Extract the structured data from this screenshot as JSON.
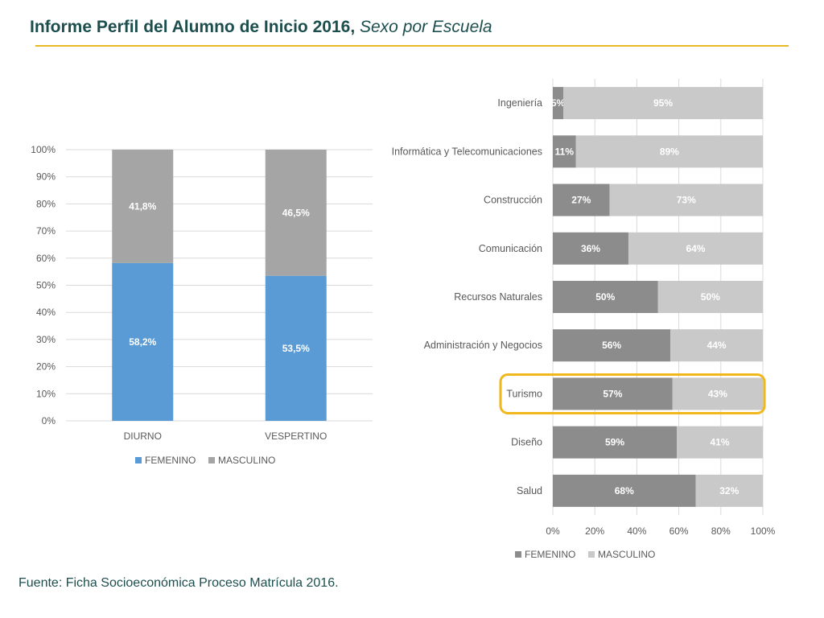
{
  "title": {
    "main": "Informe Perfil del Alumno de Inicio 2016,",
    "italic": "Sexo por Escuela"
  },
  "source": "Fuente: Ficha Socioeconómica Proceso Matrícula 2016.",
  "colors": {
    "title": "#1d4e4e",
    "rule": "#e8b923",
    "left_femenino": "#5b9bd5",
    "left_masculino": "#a5a5a5",
    "right_femenino": "#8c8c8c",
    "right_masculino": "#c9c9c9",
    "highlight": "#f0b81c",
    "grid": "#d9d9d9",
    "axis_text": "#595959"
  },
  "chart_data": [
    {
      "type": "bar",
      "orientation": "vertical",
      "stacked": true,
      "categories": [
        "DIURNO",
        "VESPERTINO"
      ],
      "series": [
        {
          "name": "FEMENINO",
          "values": [
            58.2,
            53.5
          ],
          "labels": [
            "58,2%",
            "53,5%"
          ]
        },
        {
          "name": "MASCULINO",
          "values": [
            41.8,
            46.5
          ],
          "labels": [
            "41,8%",
            "46,5%"
          ]
        }
      ],
      "ylim": [
        0,
        100
      ],
      "yticks": [
        "0%",
        "10%",
        "20%",
        "30%",
        "40%",
        "50%",
        "60%",
        "70%",
        "80%",
        "90%",
        "100%"
      ],
      "legend": [
        "FEMENINO",
        "MASCULINO"
      ],
      "legend_position": "bottom",
      "grid": true
    },
    {
      "type": "bar",
      "orientation": "horizontal",
      "stacked": true,
      "categories": [
        "Ingeniería",
        "Informática y Telecomunicaciones",
        "Construcción",
        "Comunicación",
        "Recursos Naturales",
        "Administración y Negocios",
        "Turismo",
        "Diseño",
        "Salud"
      ],
      "series": [
        {
          "name": "FEMENINO",
          "values": [
            5,
            11,
            27,
            36,
            50,
            56,
            57,
            59,
            68
          ],
          "labels": [
            "5%",
            "11%",
            "27%",
            "36%",
            "50%",
            "56%",
            "57%",
            "59%",
            "68%"
          ]
        },
        {
          "name": "MASCULINO",
          "values": [
            95,
            89,
            73,
            64,
            50,
            44,
            43,
            41,
            32
          ],
          "labels": [
            "95%",
            "89%",
            "73%",
            "64%",
            "50%",
            "44%",
            "43%",
            "41%",
            "32%"
          ]
        }
      ],
      "xlim": [
        0,
        100
      ],
      "xticks": [
        "0%",
        "20%",
        "40%",
        "60%",
        "80%",
        "100%"
      ],
      "legend": [
        "FEMENINO",
        "MASCULINO"
      ],
      "legend_position": "bottom",
      "grid": true,
      "highlighted_category": "Turismo"
    }
  ]
}
